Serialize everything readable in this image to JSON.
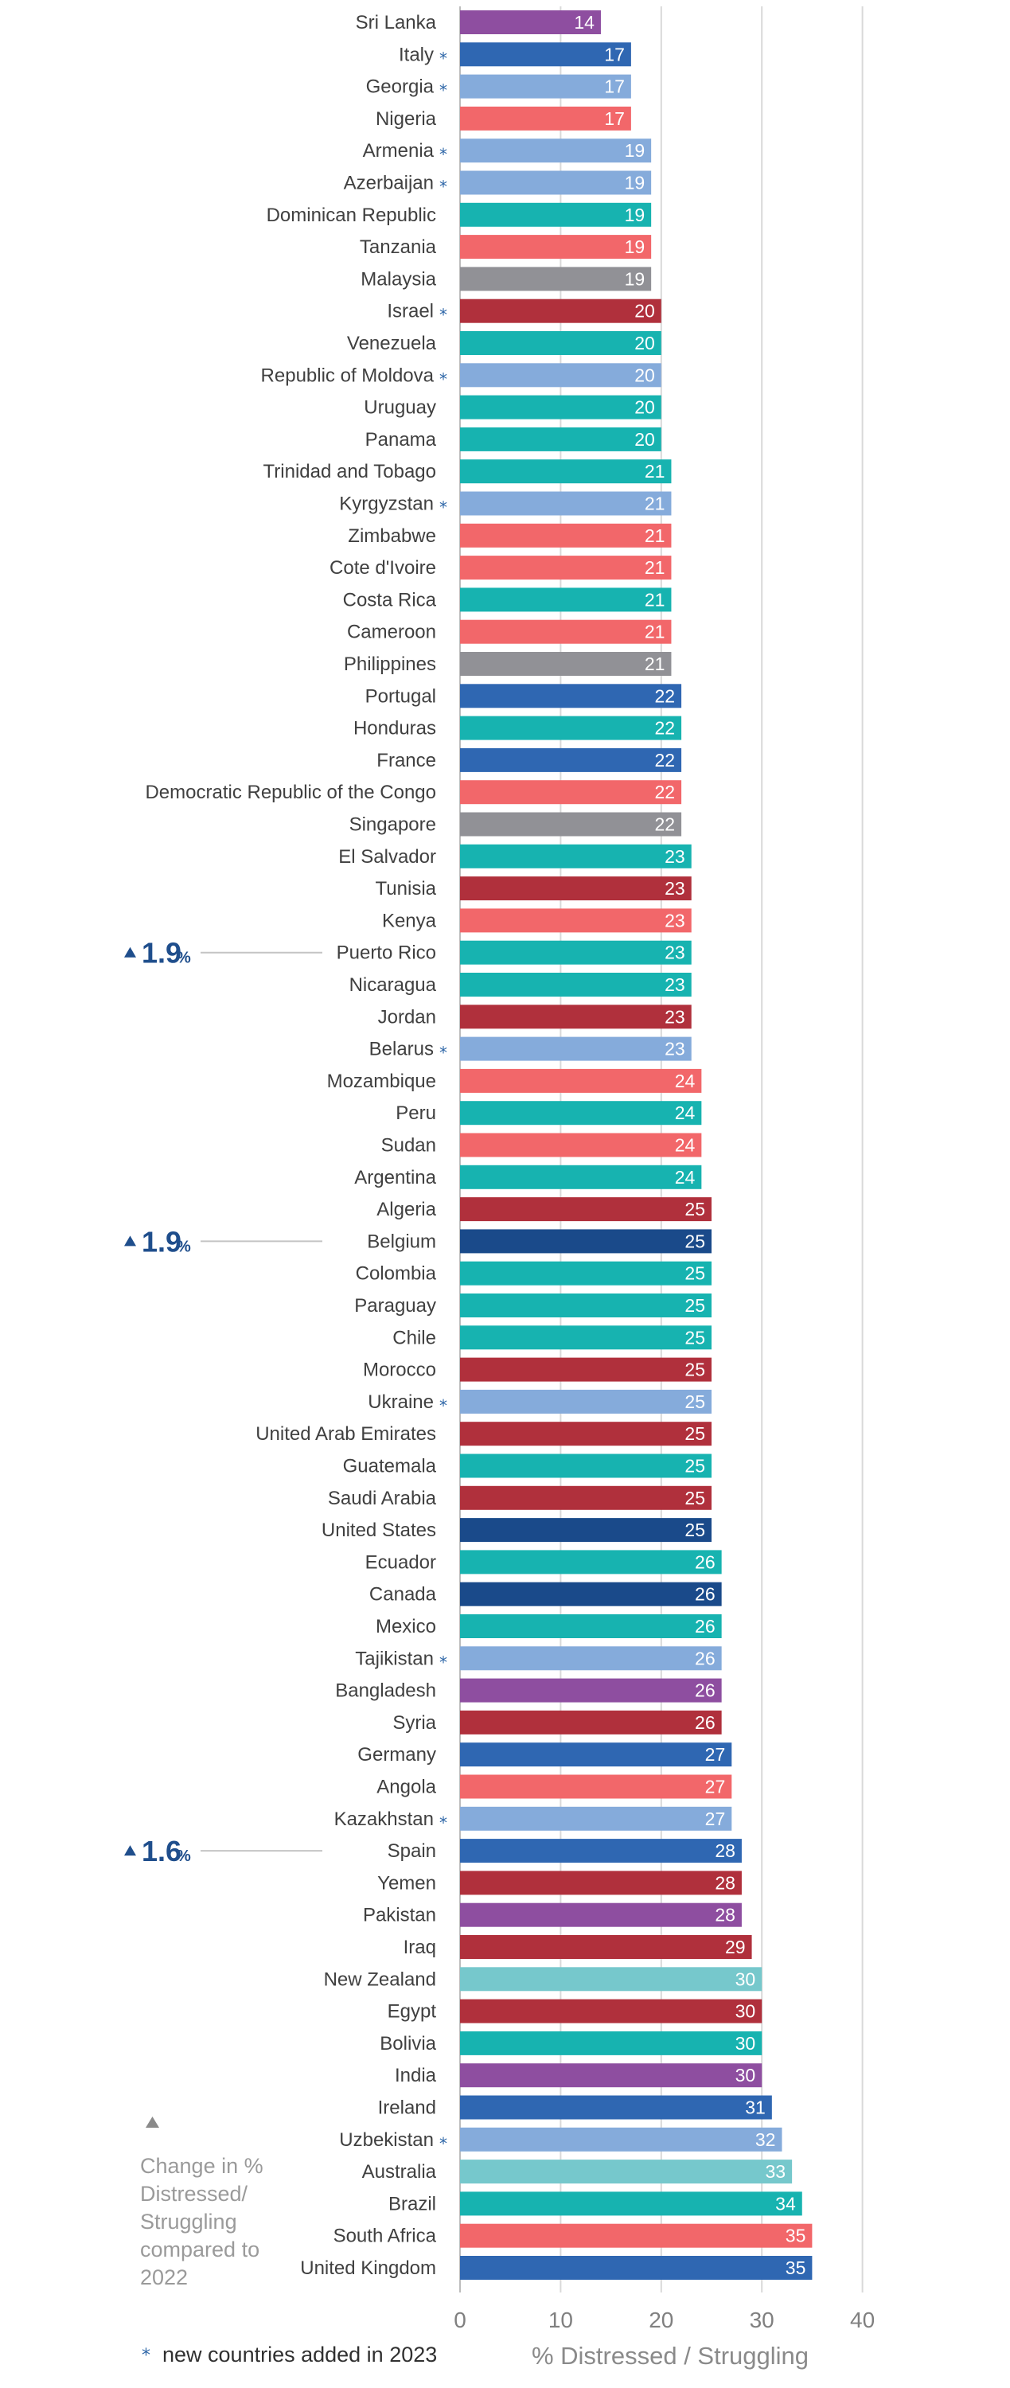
{
  "chart_data": {
    "type": "bar",
    "orientation": "horizontal",
    "xlabel": "% Distressed / Struggling",
    "xlim": [
      0,
      40
    ],
    "xticks": [
      0,
      10,
      20,
      30,
      40
    ],
    "grid": true,
    "bars": [
      {
        "label": "Sri Lanka",
        "value": 14,
        "new": false,
        "color": "#8e4ea0"
      },
      {
        "label": "Italy",
        "value": 17,
        "new": true,
        "color": "#2f67b2"
      },
      {
        "label": "Georgia",
        "value": 17,
        "new": true,
        "color": "#85abdb"
      },
      {
        "label": "Nigeria",
        "value": 17,
        "new": false,
        "color": "#f2676a"
      },
      {
        "label": "Armenia",
        "value": 19,
        "new": true,
        "color": "#85abdb"
      },
      {
        "label": "Azerbaijan",
        "value": 19,
        "new": true,
        "color": "#85abdb"
      },
      {
        "label": "Dominican Republic",
        "value": 19,
        "new": false,
        "color": "#17b3b0"
      },
      {
        "label": "Tanzania",
        "value": 19,
        "new": false,
        "color": "#f2676a"
      },
      {
        "label": "Malaysia",
        "value": 19,
        "new": false,
        "color": "#919196"
      },
      {
        "label": "Israel",
        "value": 20,
        "new": true,
        "color": "#b0303c"
      },
      {
        "label": "Venezuela",
        "value": 20,
        "new": false,
        "color": "#17b3b0"
      },
      {
        "label": "Republic of Moldova",
        "value": 20,
        "new": true,
        "color": "#85abdb"
      },
      {
        "label": "Uruguay",
        "value": 20,
        "new": false,
        "color": "#17b3b0"
      },
      {
        "label": "Panama",
        "value": 20,
        "new": false,
        "color": "#17b3b0"
      },
      {
        "label": "Trinidad and Tobago",
        "value": 21,
        "new": false,
        "color": "#17b3b0"
      },
      {
        "label": "Kyrgyzstan",
        "value": 21,
        "new": true,
        "color": "#85abdb"
      },
      {
        "label": "Zimbabwe",
        "value": 21,
        "new": false,
        "color": "#f2676a"
      },
      {
        "label": "Cote d'Ivoire",
        "value": 21,
        "new": false,
        "color": "#f2676a"
      },
      {
        "label": "Costa Rica",
        "value": 21,
        "new": false,
        "color": "#17b3b0"
      },
      {
        "label": "Cameroon",
        "value": 21,
        "new": false,
        "color": "#f2676a"
      },
      {
        "label": "Philippines",
        "value": 21,
        "new": false,
        "color": "#919196"
      },
      {
        "label": "Portugal",
        "value": 22,
        "new": false,
        "color": "#2f67b2"
      },
      {
        "label": "Honduras",
        "value": 22,
        "new": false,
        "color": "#17b3b0"
      },
      {
        "label": "France",
        "value": 22,
        "new": false,
        "color": "#2f67b2"
      },
      {
        "label": "Democratic Republic of the Congo",
        "value": 22,
        "new": false,
        "color": "#f2676a"
      },
      {
        "label": "Singapore",
        "value": 22,
        "new": false,
        "color": "#919196"
      },
      {
        "label": "El Salvador",
        "value": 23,
        "new": false,
        "color": "#17b3b0"
      },
      {
        "label": "Tunisia",
        "value": 23,
        "new": false,
        "color": "#b0303c"
      },
      {
        "label": "Kenya",
        "value": 23,
        "new": false,
        "color": "#f2676a"
      },
      {
        "label": "Puerto Rico",
        "value": 23,
        "new": false,
        "color": "#17b3b0"
      },
      {
        "label": "Nicaragua",
        "value": 23,
        "new": false,
        "color": "#17b3b0"
      },
      {
        "label": "Jordan",
        "value": 23,
        "new": false,
        "color": "#b0303c"
      },
      {
        "label": "Belarus",
        "value": 23,
        "new": true,
        "color": "#85abdb"
      },
      {
        "label": "Mozambique",
        "value": 24,
        "new": false,
        "color": "#f2676a"
      },
      {
        "label": "Peru",
        "value": 24,
        "new": false,
        "color": "#17b3b0"
      },
      {
        "label": "Sudan",
        "value": 24,
        "new": false,
        "color": "#f2676a"
      },
      {
        "label": "Argentina",
        "value": 24,
        "new": false,
        "color": "#17b3b0"
      },
      {
        "label": "Algeria",
        "value": 25,
        "new": false,
        "color": "#b0303c"
      },
      {
        "label": "Belgium",
        "value": 25,
        "new": false,
        "color": "#1a4a8a"
      },
      {
        "label": "Colombia",
        "value": 25,
        "new": false,
        "color": "#17b3b0"
      },
      {
        "label": "Paraguay",
        "value": 25,
        "new": false,
        "color": "#17b3b0"
      },
      {
        "label": "Chile",
        "value": 25,
        "new": false,
        "color": "#17b3b0"
      },
      {
        "label": "Morocco",
        "value": 25,
        "new": false,
        "color": "#b0303c"
      },
      {
        "label": "Ukraine",
        "value": 25,
        "new": true,
        "color": "#85abdb"
      },
      {
        "label": "United Arab Emirates",
        "value": 25,
        "new": false,
        "color": "#b0303c"
      },
      {
        "label": "Guatemala",
        "value": 25,
        "new": false,
        "color": "#17b3b0"
      },
      {
        "label": "Saudi Arabia",
        "value": 25,
        "new": false,
        "color": "#b0303c"
      },
      {
        "label": "United States",
        "value": 25,
        "new": false,
        "color": "#1a4a8a"
      },
      {
        "label": "Ecuador",
        "value": 26,
        "new": false,
        "color": "#17b3b0"
      },
      {
        "label": "Canada",
        "value": 26,
        "new": false,
        "color": "#1a4a8a"
      },
      {
        "label": "Mexico",
        "value": 26,
        "new": false,
        "color": "#17b3b0"
      },
      {
        "label": "Tajikistan",
        "value": 26,
        "new": true,
        "color": "#85abdb"
      },
      {
        "label": "Bangladesh",
        "value": 26,
        "new": false,
        "color": "#8e4ea0"
      },
      {
        "label": "Syria",
        "value": 26,
        "new": false,
        "color": "#b0303c"
      },
      {
        "label": "Germany",
        "value": 27,
        "new": false,
        "color": "#2f67b2"
      },
      {
        "label": "Angola",
        "value": 27,
        "new": false,
        "color": "#f2676a"
      },
      {
        "label": "Kazakhstan",
        "value": 27,
        "new": true,
        "color": "#85abdb"
      },
      {
        "label": "Spain",
        "value": 28,
        "new": false,
        "color": "#2f67b2"
      },
      {
        "label": "Yemen",
        "value": 28,
        "new": false,
        "color": "#b0303c"
      },
      {
        "label": "Pakistan",
        "value": 28,
        "new": false,
        "color": "#8e4ea0"
      },
      {
        "label": "Iraq",
        "value": 29,
        "new": false,
        "color": "#b0303c"
      },
      {
        "label": "New Zealand",
        "value": 30,
        "new": false,
        "color": "#76c8cc"
      },
      {
        "label": "Egypt",
        "value": 30,
        "new": false,
        "color": "#b0303c"
      },
      {
        "label": "Bolivia",
        "value": 30,
        "new": false,
        "color": "#17b3b0"
      },
      {
        "label": "India",
        "value": 30,
        "new": false,
        "color": "#8e4ea0"
      },
      {
        "label": "Ireland",
        "value": 31,
        "new": false,
        "color": "#2f67b2"
      },
      {
        "label": "Uzbekistan",
        "value": 32,
        "new": true,
        "color": "#85abdb"
      },
      {
        "label": "Australia",
        "value": 33,
        "new": false,
        "color": "#76c8cc"
      },
      {
        "label": "Brazil",
        "value": 34,
        "new": false,
        "color": "#17b3b0"
      },
      {
        "label": "South Africa",
        "value": 35,
        "new": false,
        "color": "#f2676a"
      },
      {
        "label": "United Kingdom",
        "value": 35,
        "new": false,
        "color": "#2f67b2"
      }
    ],
    "callouts": [
      {
        "country": "Puerto Rico",
        "value": "1.9",
        "unit": "%"
      },
      {
        "country": "Belgium",
        "value": "1.9",
        "unit": "%"
      },
      {
        "country": "Spain",
        "value": "1.6",
        "unit": "%"
      }
    ],
    "legend": {
      "lines": [
        "Change in %",
        "Distressed/",
        "Struggling",
        "compared to",
        "2022"
      ]
    },
    "footnote": {
      "star": "*",
      "text": "new countries added in 2023"
    },
    "star_symbol": "*"
  }
}
